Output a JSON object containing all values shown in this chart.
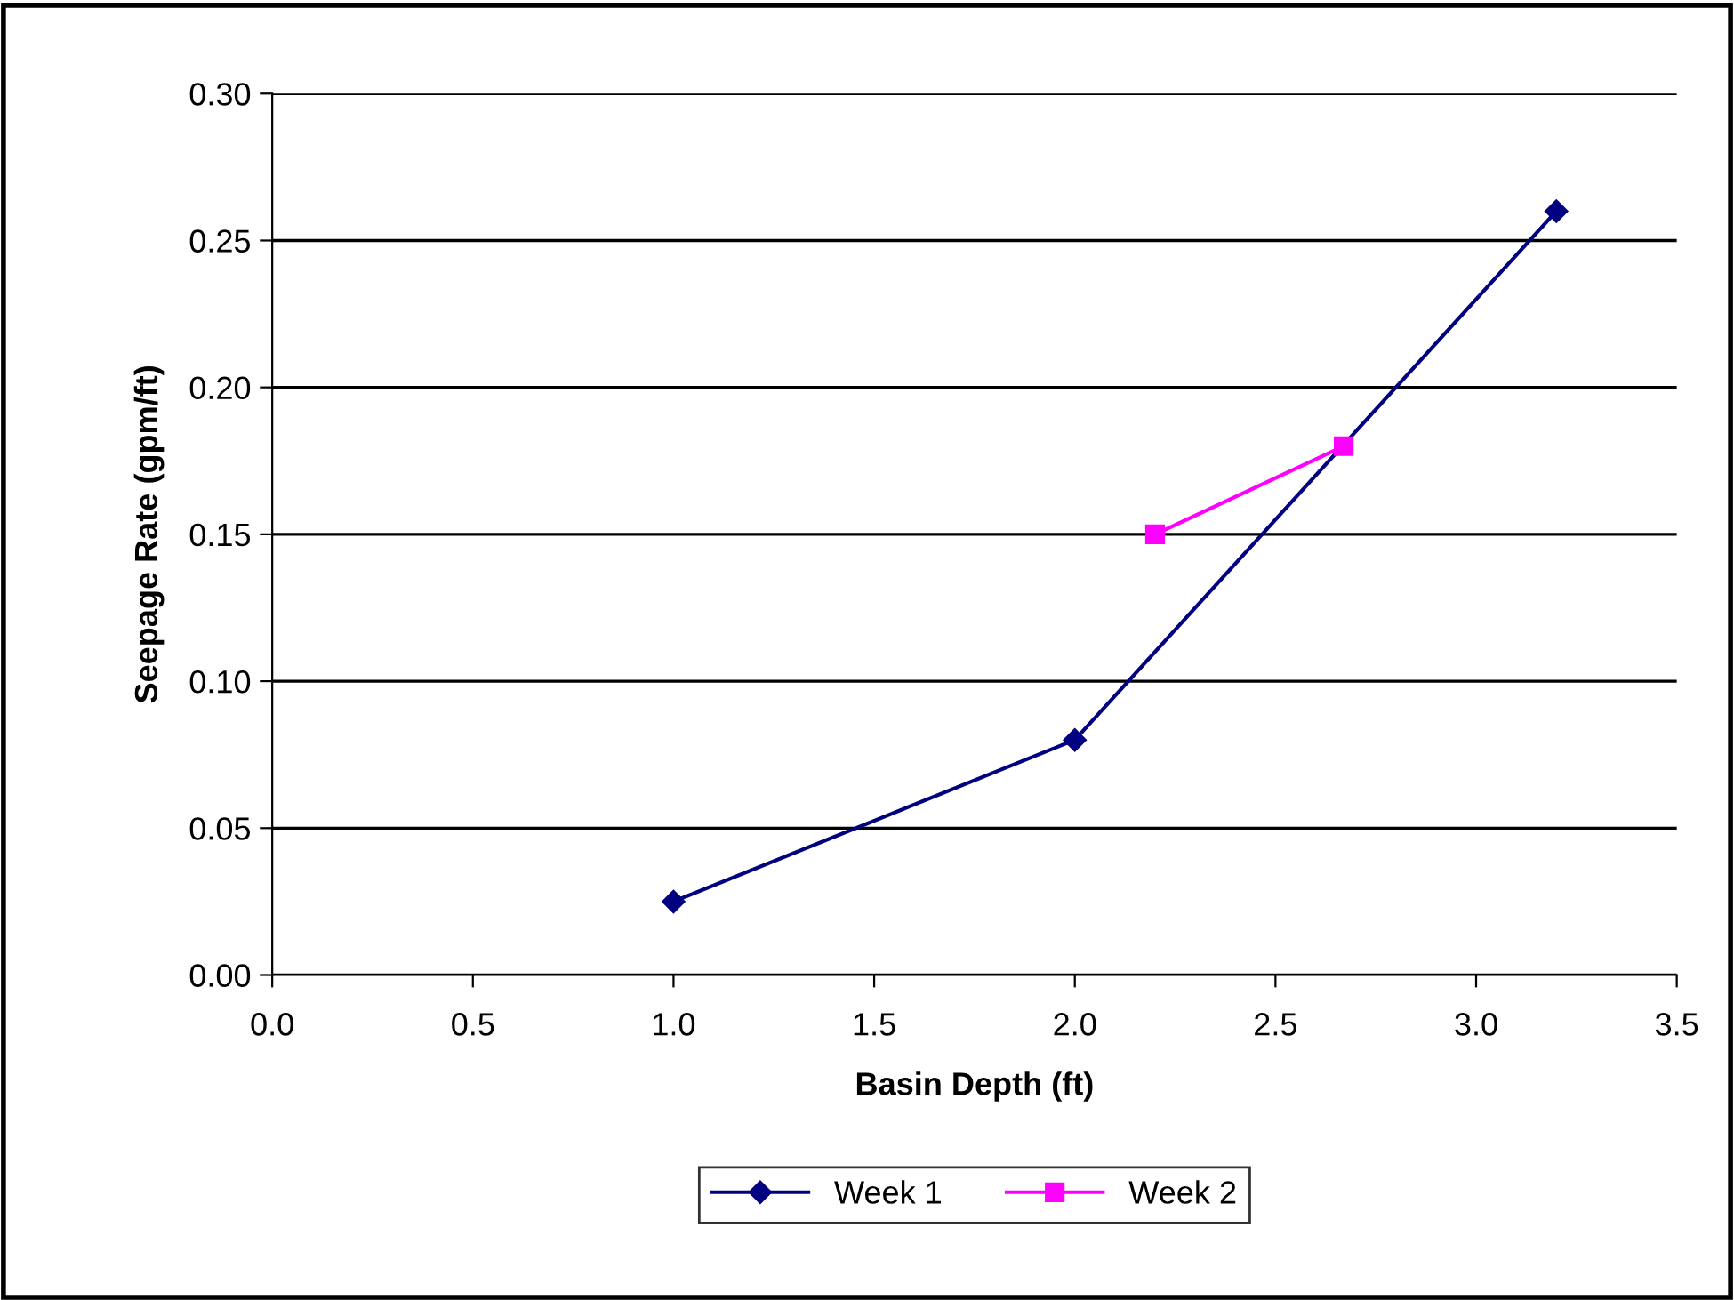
{
  "chart_data": {
    "type": "line",
    "xlabel": "Basin Depth (ft)",
    "ylabel": "Seepage Rate (gpm/ft)",
    "series": [
      {
        "name": "Week 1",
        "color": "#000080",
        "marker": "diamond",
        "x": [
          1.0,
          2.0,
          3.2
        ],
        "values": [
          0.025,
          0.08,
          0.26
        ]
      },
      {
        "name": "Week 2",
        "color": "#ff00ff",
        "marker": "square",
        "x": [
          2.2,
          2.67
        ],
        "values": [
          0.15,
          0.18
        ]
      }
    ],
    "xlim": [
      0,
      3.5
    ],
    "xticks": [
      {
        "value": 0,
        "label": "0.0"
      },
      {
        "value": 0.5,
        "label": "0.5"
      },
      {
        "value": 1,
        "label": "1.0"
      },
      {
        "value": 1.5,
        "label": "1.5"
      },
      {
        "value": 2,
        "label": "2.0"
      },
      {
        "value": 2.5,
        "label": "2.5"
      },
      {
        "value": 3,
        "label": "3.0"
      },
      {
        "value": 3.5,
        "label": "3.5"
      }
    ],
    "ylim": [
      0,
      0.3
    ],
    "yticks": [
      {
        "value": 0,
        "label": "0.00"
      },
      {
        "value": 0.05,
        "label": "0.05"
      },
      {
        "value": 0.1,
        "label": "0.10"
      },
      {
        "value": 0.15,
        "label": "0.15"
      },
      {
        "value": 0.2,
        "label": "0.20"
      },
      {
        "value": 0.25,
        "label": "0.25"
      },
      {
        "value": 0.3,
        "label": "0.30"
      }
    ],
    "grid": "y",
    "legend": "bottom",
    "line_style": "solid"
  }
}
